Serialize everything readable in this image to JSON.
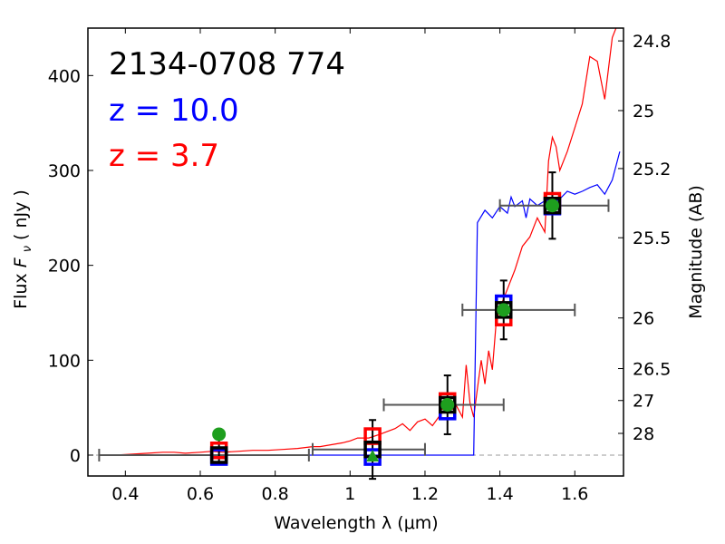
{
  "chart_data": {
    "type": "scatter",
    "title": "2134-0708 774",
    "xlabel": "Wavelength  λ (μm)",
    "ylabel_prefix": "Flux ",
    "ylabel_symbol": "F",
    "ylabel_subscript": "ν",
    "ylabel_suffix": "  ( nJy )",
    "y2label": "Magnitude (AB)",
    "xlim": [
      0.3,
      1.73
    ],
    "ylim": [
      -22,
      450
    ],
    "x_ticks": [
      {
        "value": 0.4,
        "label": "0.4"
      },
      {
        "value": 0.6,
        "label": "0.6"
      },
      {
        "value": 0.8,
        "label": "0.8"
      },
      {
        "value": 1.0,
        "label": "1"
      },
      {
        "value": 1.2,
        "label": "1.2"
      },
      {
        "value": 1.4,
        "label": "1.4"
      },
      {
        "value": 1.6,
        "label": "1.6"
      }
    ],
    "y_ticks": [
      {
        "value": 0,
        "label": "0"
      },
      {
        "value": 100,
        "label": "100"
      },
      {
        "value": 200,
        "label": "200"
      },
      {
        "value": 300,
        "label": "300"
      },
      {
        "value": 400,
        "label": "400"
      }
    ],
    "mag_ticks": [
      {
        "mag": 24.8,
        "label": "24.8"
      },
      {
        "mag": 25.0,
        "label": "25"
      },
      {
        "mag": 25.2,
        "label": "25.2"
      },
      {
        "mag": 25.5,
        "label": "25.5"
      },
      {
        "mag": 26.0,
        "label": "26"
      },
      {
        "mag": 26.5,
        "label": "26.5"
      },
      {
        "mag": 27.0,
        "label": "27"
      },
      {
        "mag": 28.0,
        "label": "28"
      }
    ],
    "annotations": [
      {
        "text": "2134-0708 774",
        "color": "#000000"
      },
      {
        "text": "z = 10.0",
        "color": "#0000ff"
      },
      {
        "text": "z = 3.7",
        "color": "#ff0000"
      }
    ],
    "zero_line": {
      "value": 0,
      "style": "dashed",
      "color": "#999999"
    },
    "series": [
      {
        "name": "z = 3.7 model spectrum",
        "kind": "line",
        "color": "#ff0000",
        "x": [
          0.37,
          0.42,
          0.46,
          0.5,
          0.53,
          0.56,
          0.6,
          0.63,
          0.66,
          0.7,
          0.74,
          0.78,
          0.82,
          0.86,
          0.88,
          0.9,
          0.92,
          0.95,
          0.98,
          1.0,
          1.02,
          1.05,
          1.08,
          1.1,
          1.12,
          1.14,
          1.16,
          1.18,
          1.2,
          1.22,
          1.24,
          1.26,
          1.28,
          1.3,
          1.31,
          1.32,
          1.33,
          1.34,
          1.35,
          1.36,
          1.37,
          1.38,
          1.39,
          1.4,
          1.42,
          1.44,
          1.46,
          1.48,
          1.5,
          1.52,
          1.53,
          1.54,
          1.55,
          1.56,
          1.58,
          1.6,
          1.62,
          1.64,
          1.66,
          1.68,
          1.7,
          1.72
        ],
        "y": [
          0,
          1,
          2,
          3,
          3,
          2,
          3,
          4,
          3,
          4,
          5,
          5,
          6,
          7,
          8,
          9,
          9,
          11,
          13,
          15,
          18,
          18,
          22,
          25,
          28,
          33,
          26,
          35,
          38,
          31,
          42,
          50,
          55,
          40,
          95,
          55,
          40,
          70,
          100,
          75,
          110,
          90,
          140,
          155,
          175,
          195,
          220,
          230,
          250,
          235,
          310,
          335,
          325,
          300,
          320,
          345,
          370,
          420,
          415,
          375,
          440,
          460
        ]
      },
      {
        "name": "z = 10.0 model spectrum",
        "kind": "line",
        "color": "#0000ff",
        "x": [
          0.37,
          1.28,
          1.32,
          1.33,
          1.34,
          1.36,
          1.38,
          1.4,
          1.42,
          1.43,
          1.44,
          1.46,
          1.47,
          1.48,
          1.5,
          1.52,
          1.54,
          1.56,
          1.58,
          1.6,
          1.62,
          1.64,
          1.66,
          1.68,
          1.7,
          1.72
        ],
        "y": [
          0,
          0,
          0,
          0,
          245,
          258,
          250,
          262,
          255,
          272,
          262,
          268,
          250,
          270,
          263,
          268,
          265,
          270,
          278,
          275,
          278,
          282,
          285,
          275,
          290,
          320
        ]
      },
      {
        "name": "observed photometry",
        "kind": "errorbar",
        "marker": "square",
        "color": "#000000",
        "x": [
          0.65,
          1.06,
          1.26,
          1.41,
          1.54
        ],
        "xerr": [
          [
            0.32,
            0.24
          ],
          [
            0.16,
            0.14
          ],
          [
            0.17,
            0.15
          ],
          [
            0.11,
            0.19
          ],
          [
            0.14,
            0.15
          ]
        ],
        "y": [
          0,
          6,
          53,
          153,
          263
        ],
        "yerr": [
          [
            10,
            25
          ],
          [
            31,
            31
          ],
          [
            31,
            31
          ],
          [
            31,
            31
          ],
          [
            35,
            35
          ]
        ]
      },
      {
        "name": "z = 3.7 model photometry",
        "kind": "marker",
        "marker": "square",
        "color": "#ff0000",
        "x": [
          0.65,
          1.06,
          1.26,
          1.41,
          1.54
        ],
        "y": [
          5,
          20,
          57,
          145,
          268
        ]
      },
      {
        "name": "z = 10.0 model photometry",
        "kind": "marker",
        "marker": "square",
        "color": "#0000ff",
        "x": [
          0.65,
          1.06,
          1.26,
          1.41,
          1.54
        ],
        "y": [
          -2,
          -2,
          46,
          160,
          262
        ]
      },
      {
        "name": "detections",
        "kind": "marker",
        "marker": "circle",
        "color": "#1e9e1e",
        "x": [
          0.65,
          1.26,
          1.41,
          1.54
        ],
        "y": [
          22,
          53,
          153,
          263
        ]
      },
      {
        "name": "non-detection",
        "kind": "marker",
        "marker": "triangle",
        "color": "#1e9e1e",
        "x": [
          1.06
        ],
        "y": [
          -1
        ]
      }
    ]
  }
}
